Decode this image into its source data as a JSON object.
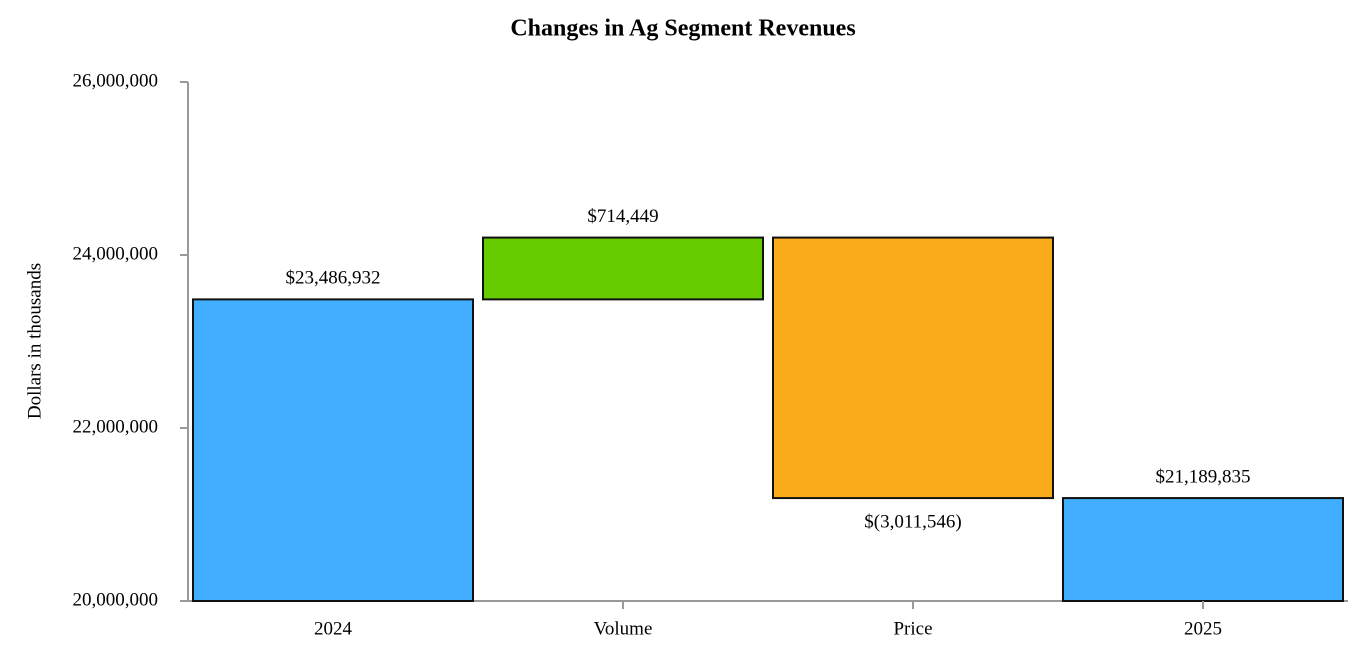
{
  "chart_data": {
    "type": "waterfall",
    "title": "Changes in Ag Segment Revenues",
    "y_label": "Dollars in thousands",
    "categories": [
      "2024",
      "Volume",
      "Price",
      "2025"
    ],
    "values": [
      23486932,
      714449,
      -3011546,
      21189835
    ],
    "value_labels": [
      "$23,486,932",
      "$714,449",
      "$(3,011,546)",
      "$21,189,835"
    ],
    "colors": [
      "#42aeff",
      "#66cc00",
      "#f9ab1a",
      "#42aeff"
    ],
    "ylim": [
      20000000,
      26000000
    ],
    "yticks": [
      {
        "value": 20000000,
        "label": "20,000,000"
      },
      {
        "value": 22000000,
        "label": "22,000,000"
      },
      {
        "value": 24000000,
        "label": "24,000,000"
      },
      {
        "value": 26000000,
        "label": "26,000,000"
      }
    ]
  }
}
